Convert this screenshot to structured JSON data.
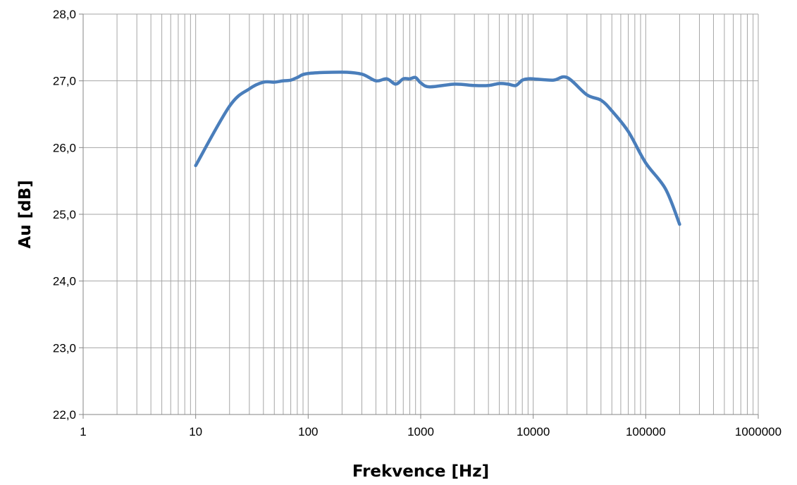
{
  "chart_data": {
    "type": "line",
    "xscale": "log",
    "xlabel": "Frekvence [Hz]",
    "ylabel": "Au [dB]",
    "xlim": [
      1,
      1000000
    ],
    "ylim": [
      22.0,
      28.0
    ],
    "grid": true,
    "legend": "none",
    "x_tick_labels": [
      "1",
      "10",
      "100",
      "1000",
      "10000",
      "100000",
      "1000000"
    ],
    "y_tick_labels": [
      "22,0",
      "23,0",
      "24,0",
      "25,0",
      "26,0",
      "27,0",
      "28,0"
    ],
    "series": [
      {
        "color": "#4a7ebb",
        "x": [
          10,
          20,
          30,
          40,
          50,
          60,
          70,
          80,
          100,
          200,
          300,
          400,
          500,
          600,
          700,
          800,
          900,
          1000,
          1200,
          2000,
          3000,
          4000,
          5000,
          6000,
          7000,
          8000,
          9000,
          10000,
          15000,
          20000,
          30000,
          40000,
          50000,
          70000,
          100000,
          150000,
          200000
        ],
        "y": [
          25.73,
          26.62,
          26.88,
          26.98,
          26.98,
          27.0,
          27.01,
          27.05,
          27.11,
          27.13,
          27.1,
          27.0,
          27.03,
          26.95,
          27.03,
          27.03,
          27.05,
          26.97,
          26.91,
          26.95,
          26.93,
          26.93,
          26.96,
          26.95,
          26.93,
          27.01,
          27.03,
          27.03,
          27.01,
          27.05,
          26.79,
          26.71,
          26.55,
          26.24,
          25.77,
          25.38,
          24.85
        ]
      }
    ]
  }
}
